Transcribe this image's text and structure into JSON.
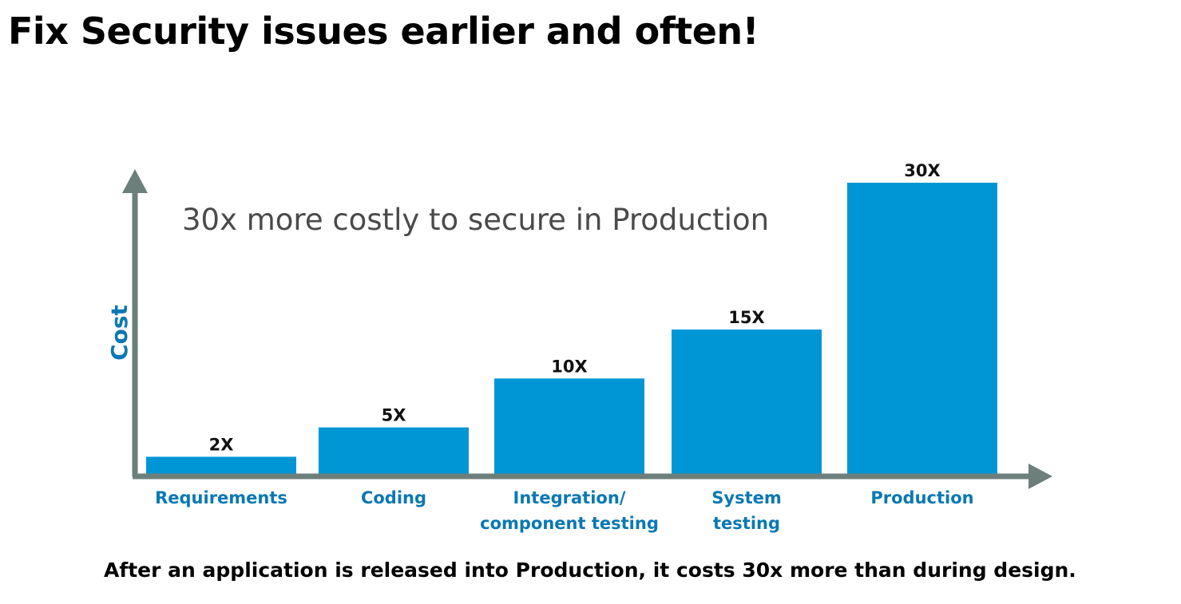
{
  "page": {
    "title": "Fix Security issues earlier and often!",
    "footer": "After an application is released into Production, it costs 30x more than during design."
  },
  "chart_data": {
    "type": "bar",
    "categories": [
      [
        "Requirements"
      ],
      [
        "Coding"
      ],
      [
        "Integration/",
        "component testing"
      ],
      [
        "System",
        "testing"
      ],
      [
        "Production"
      ]
    ],
    "values": [
      2,
      5,
      10,
      15,
      30
    ],
    "data_labels": [
      "2X",
      "5X",
      "10X",
      "15X",
      "30X"
    ],
    "annotation": "30x more costly to secure in Production",
    "ylabel": "Cost",
    "xlabel": "",
    "grid": false,
    "colors": {
      "bar": "#0096d6",
      "axis": "#6d7f7b",
      "category_label": "#0a78b3",
      "ylabel": "#0a78b3",
      "annotation": "#4a4a4a",
      "data_label": "#111111"
    }
  }
}
